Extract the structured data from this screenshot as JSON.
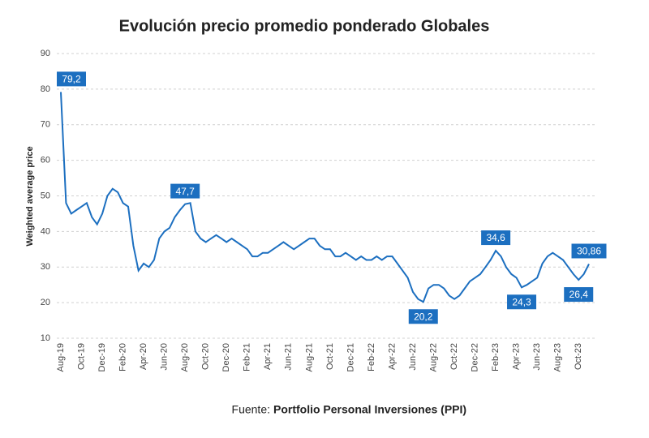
{
  "chart_data": {
    "type": "line",
    "title": "Evolución precio promedio ponderado Globales",
    "y_label": "Weighted average price",
    "source_label": "Fuente:",
    "source_name": "Portfolio Personal Inversiones (PPI)",
    "categories": [
      "Aug-19",
      null,
      null,
      null,
      "Oct-19",
      null,
      null,
      null,
      "Dec-19",
      null,
      null,
      null,
      "Feb-20",
      null,
      null,
      null,
      "Apr-20",
      null,
      null,
      null,
      "Jun-20",
      null,
      null,
      null,
      "Aug-20",
      null,
      null,
      null,
      "Oct-20",
      null,
      null,
      null,
      "Dec-20",
      null,
      null,
      null,
      "Feb-21",
      null,
      null,
      null,
      "Apr-21",
      null,
      null,
      null,
      "Jun-21",
      null,
      null,
      null,
      "Aug-21",
      null,
      null,
      null,
      "Oct-21",
      null,
      null,
      null,
      "Dec-21",
      null,
      null,
      null,
      "Feb-22",
      null,
      null,
      null,
      "Apr-22",
      null,
      null,
      null,
      "Jun-22",
      null,
      null,
      null,
      "Aug-22",
      null,
      null,
      null,
      "Oct-22",
      null,
      null,
      null,
      "Dec-22",
      null,
      null,
      null,
      "Feb-23",
      null,
      null,
      null,
      "Apr-23",
      null,
      null,
      null,
      "Jun-23",
      null,
      null,
      null,
      "Aug-23",
      null,
      null,
      null,
      "Oct-23",
      null,
      null
    ],
    "series": [
      {
        "name": "Globales",
        "color": "#1c6fc0",
        "values": [
          79.2,
          48,
          45,
          46,
          47,
          48,
          44,
          42,
          45,
          50,
          52,
          51,
          48,
          47,
          36,
          29,
          31,
          30,
          32,
          38,
          40,
          41,
          44,
          46,
          47.7,
          48,
          40,
          38,
          37,
          38,
          39,
          38,
          37,
          38,
          37,
          36,
          35,
          33,
          33,
          34,
          34,
          35,
          36,
          37,
          36,
          35,
          36,
          37,
          38,
          38,
          36,
          35,
          35,
          33,
          33,
          34,
          33,
          32,
          33,
          32,
          32,
          33,
          32,
          33,
          33,
          31,
          29,
          27,
          23,
          21,
          20.2,
          24,
          25,
          25,
          24,
          22,
          21,
          22,
          24,
          26,
          27,
          28,
          30,
          32,
          34.6,
          33,
          30,
          28,
          27,
          24.3,
          25,
          26,
          27,
          31,
          33,
          34,
          33,
          32,
          30,
          28,
          26.4,
          28,
          30.86
        ],
        "value_labels": [
          "79,2",
          null,
          null,
          null,
          null,
          null,
          null,
          null,
          null,
          null,
          null,
          null,
          null,
          null,
          null,
          null,
          null,
          null,
          null,
          null,
          null,
          null,
          null,
          null,
          "47,7",
          null,
          null,
          null,
          null,
          null,
          null,
          null,
          null,
          null,
          null,
          null,
          null,
          null,
          null,
          null,
          null,
          null,
          null,
          null,
          null,
          null,
          null,
          null,
          null,
          null,
          null,
          null,
          null,
          null,
          null,
          null,
          null,
          null,
          null,
          null,
          null,
          null,
          null,
          null,
          null,
          null,
          null,
          null,
          null,
          null,
          "20,2",
          null,
          null,
          null,
          null,
          null,
          null,
          null,
          null,
          null,
          null,
          null,
          null,
          null,
          "34,6",
          null,
          null,
          null,
          null,
          "24,3",
          null,
          null,
          null,
          null,
          null,
          null,
          null,
          null,
          null,
          null,
          "26,4",
          null,
          "30,86"
        ]
      }
    ],
    "label_color": "#1c6fc0",
    "ylim": [
      10,
      90
    ],
    "yticks": [
      10,
      20,
      30,
      40,
      50,
      60,
      70,
      80,
      90
    ],
    "grid": true
  }
}
